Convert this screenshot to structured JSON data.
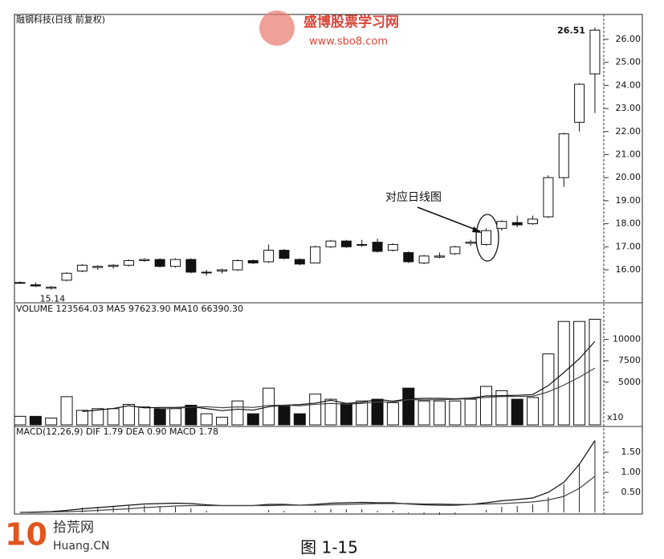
{
  "chart_data": [
    {
      "type": "candlestick",
      "title": "融钢科技(日线 前复权)",
      "open": [
        15.45,
        15.35,
        15.2,
        15.55,
        15.95,
        16.1,
        16.15,
        16.2,
        16.4,
        16.45,
        16.15,
        16.45,
        15.9,
        15.95,
        16.0,
        16.4,
        16.35,
        16.85,
        16.45,
        16.3,
        17.0,
        17.25,
        17.1,
        17.2,
        16.85,
        16.75,
        16.3,
        16.55,
        16.7,
        17.15,
        17.1,
        17.8,
        18.05,
        18.0,
        18.3,
        20.0,
        22.4,
        24.5
      ],
      "high": [
        15.5,
        15.45,
        15.3,
        15.9,
        16.25,
        16.2,
        16.25,
        16.45,
        16.5,
        16.5,
        16.5,
        16.5,
        16.0,
        16.05,
        16.45,
        16.45,
        17.1,
        16.9,
        16.5,
        17.05,
        17.3,
        17.3,
        17.3,
        17.35,
        17.15,
        16.8,
        16.65,
        16.75,
        17.05,
        17.3,
        17.8,
        18.15,
        18.35,
        18.35,
        20.1,
        21.95,
        24.1,
        26.51
      ],
      "low": [
        15.4,
        15.25,
        15.14,
        15.5,
        15.9,
        16.0,
        16.05,
        16.15,
        16.35,
        16.1,
        16.1,
        15.85,
        15.75,
        15.85,
        15.95,
        16.25,
        16.3,
        16.45,
        16.2,
        16.3,
        16.95,
        16.95,
        17.0,
        16.75,
        16.8,
        16.3,
        16.25,
        16.5,
        16.65,
        17.05,
        17.05,
        17.7,
        17.85,
        17.95,
        18.25,
        19.6,
        22.0,
        22.8
      ],
      "close": [
        15.45,
        15.3,
        15.25,
        15.85,
        16.2,
        16.15,
        16.2,
        16.4,
        16.45,
        16.15,
        16.45,
        15.9,
        15.9,
        16.0,
        16.4,
        16.3,
        16.85,
        16.5,
        16.25,
        17.0,
        17.25,
        17.0,
        17.1,
        16.8,
        17.1,
        16.35,
        16.6,
        16.6,
        17.0,
        17.2,
        17.7,
        18.1,
        17.95,
        18.2,
        20.0,
        21.9,
        24.05,
        26.4
      ],
      "ylim": [
        14.64,
        27.08
      ],
      "yticks": [
        {
          "value": 16,
          "label": "16.00"
        },
        {
          "value": 17,
          "label": "17.00"
        },
        {
          "value": 18,
          "label": "18.00"
        },
        {
          "value": 19,
          "label": "19.00"
        },
        {
          "value": 20,
          "label": "20.00"
        },
        {
          "value": 21,
          "label": "21.00"
        },
        {
          "value": 22,
          "label": "22.00"
        },
        {
          "value": 23,
          "label": "23.00"
        },
        {
          "value": 24,
          "label": "24.00"
        },
        {
          "value": 25,
          "label": "25.00"
        },
        {
          "value": 26,
          "label": "26.00"
        }
      ],
      "high_label": {
        "value": 26.51,
        "label": "26.51"
      },
      "low_label": {
        "value": 15.14,
        "label": "15.14"
      },
      "annotation": "对应日线图"
    },
    {
      "type": "volume",
      "header": "VOLUME 123564.03 MA5 97623.90 MA10 66390.30",
      "unit": "x10",
      "values": [
        1000,
        1000,
        800,
        3300,
        1700,
        1900,
        1900,
        2400,
        2100,
        1900,
        1900,
        2300,
        1300,
        900,
        2800,
        1300,
        4300,
        2200,
        1300,
        3600,
        3000,
        2500,
        2800,
        3000,
        2600,
        4300,
        2800,
        2800,
        2800,
        3000,
        4500,
        4000,
        3000,
        3200,
        8300,
        12100,
        12100,
        12356
      ],
      "ma5": [
        null,
        null,
        null,
        null,
        1560,
        1740,
        1920,
        2240,
        2000,
        2040,
        2040,
        2120,
        1900,
        1660,
        1840,
        1720,
        2120,
        2300,
        2380,
        2540,
        2880,
        2520,
        2640,
        2980,
        2780,
        3040,
        3100,
        3100,
        3060,
        3140,
        3380,
        3420,
        3460,
        3540,
        4600,
        6120,
        7740,
        9762
      ],
      "ma10": [
        null,
        null,
        null,
        null,
        null,
        null,
        null,
        null,
        null,
        1850,
        1940,
        2070,
        2120,
        2010,
        2100,
        2040,
        2280,
        2310,
        2230,
        2400,
        2510,
        2420,
        2510,
        2680,
        2660,
        2960,
        2910,
        2940,
        2990,
        3060,
        3210,
        3310,
        3330,
        3350,
        3870,
        4650,
        5580,
        6639
      ],
      "ylim": [
        0,
        14000
      ],
      "yticks": [
        5000,
        7500,
        10000
      ]
    },
    {
      "type": "macd",
      "header": "MACD(12,26,9) DIF 1.79 DEA 0.90 MACD 1.78",
      "dif": [
        0,
        0.01,
        0.02,
        0.05,
        0.09,
        0.12,
        0.15,
        0.18,
        0.21,
        0.22,
        0.23,
        0.22,
        0.19,
        0.17,
        0.17,
        0.17,
        0.2,
        0.2,
        0.18,
        0.2,
        0.23,
        0.24,
        0.25,
        0.24,
        0.24,
        0.21,
        0.19,
        0.18,
        0.18,
        0.2,
        0.24,
        0.29,
        0.32,
        0.36,
        0.5,
        0.75,
        1.2,
        1.79
      ],
      "dea": [
        0,
        0.0,
        0.01,
        0.02,
        0.03,
        0.05,
        0.07,
        0.09,
        0.12,
        0.14,
        0.16,
        0.17,
        0.17,
        0.17,
        0.17,
        0.17,
        0.17,
        0.18,
        0.18,
        0.18,
        0.19,
        0.2,
        0.21,
        0.22,
        0.22,
        0.22,
        0.21,
        0.21,
        0.2,
        0.2,
        0.21,
        0.22,
        0.24,
        0.26,
        0.31,
        0.4,
        0.6,
        0.9
      ],
      "hist": [
        0,
        0.02,
        0.02,
        0.06,
        0.12,
        0.14,
        0.16,
        0.18,
        0.18,
        0.16,
        0.14,
        0.1,
        0.04,
        0,
        0,
        0,
        0.06,
        0.04,
        0,
        0.04,
        0.08,
        0.08,
        0.08,
        0.04,
        0.04,
        -0.02,
        -0.04,
        -0.06,
        -0.04,
        0,
        0.06,
        0.14,
        0.16,
        0.2,
        0.38,
        0.7,
        1.2,
        1.78
      ],
      "ylim": [
        -0.04,
        2.1
      ],
      "yticks": [
        {
          "value": 0.5,
          "label": "0.50"
        },
        {
          "value": 1,
          "label": "1.00"
        },
        {
          "value": 1.5,
          "label": "1.50"
        }
      ]
    }
  ],
  "caption": "图 1-15",
  "watermark_top": [
    "盛博股票学习网",
    "www.sbo8.com"
  ],
  "watermark_bottom": [
    "10",
    "拾荒网",
    "Huang.CN"
  ]
}
